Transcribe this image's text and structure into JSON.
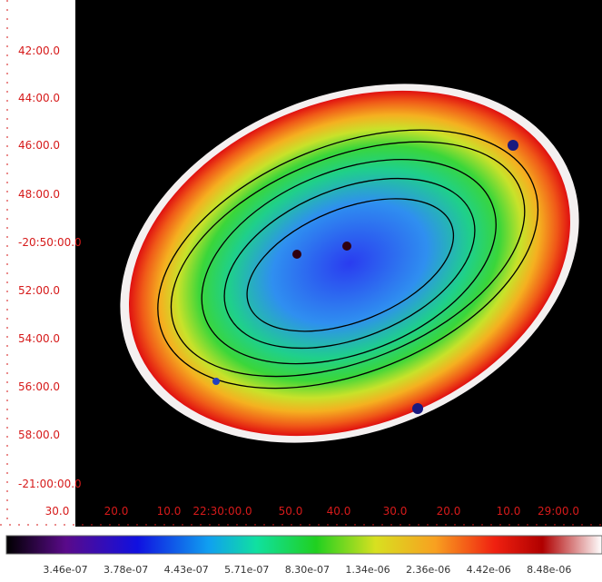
{
  "image": {
    "dec_labels": [
      "42:00.0",
      "44:00.0",
      "46:00.0",
      "48:00.0",
      "-20:50:00.0",
      "52:00.0",
      "54:00.0",
      "56:00.0",
      "58:00.0",
      "-21:00:00.0"
    ],
    "ra_labels": [
      "30.0",
      "20.0",
      "10.0",
      "22:30:00.0",
      "50.0",
      "40.0",
      "30.0",
      "20.0",
      "10.0",
      "29:00.0"
    ]
  },
  "colorbar": {
    "labels": [
      "3.46e-07",
      "3.78e-07",
      "4.43e-07",
      "5.71e-07",
      "8.30e-07",
      "1.34e-06",
      "2.36e-06",
      "4.42e-06",
      "8.48e-06"
    ]
  }
}
